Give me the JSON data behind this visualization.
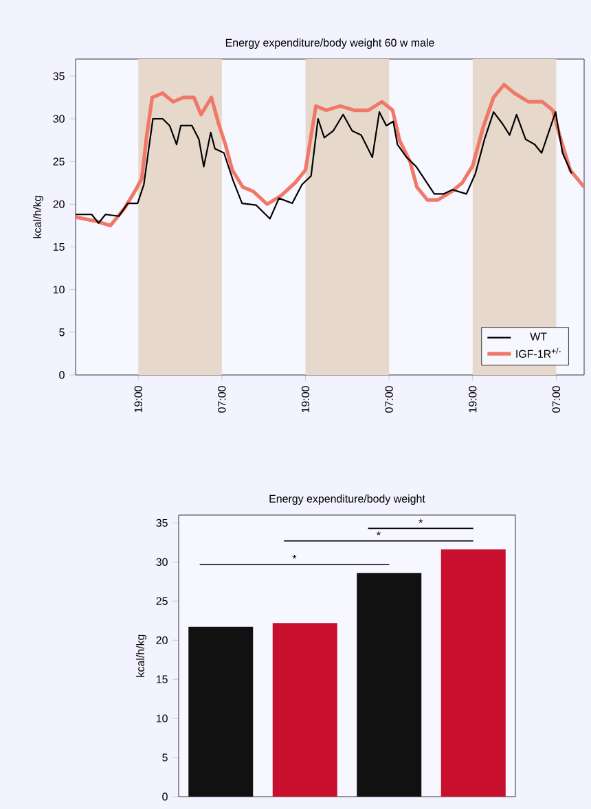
{
  "chart_data": [
    {
      "type": "line",
      "title": "Energy expenditure/body weight 60 w male",
      "ylabel": "kcal/h/kg",
      "xlim": [
        "2000-01-01T10:00",
        "2000-01-04T11:00"
      ],
      "ylim": [
        0,
        37
      ],
      "xticks": [
        {
          "value": "2000-01-01T19:00",
          "label": "19:00"
        },
        {
          "value": "2000-01-02T07:00",
          "label": "07:00"
        },
        {
          "value": "2000-01-02T19:00",
          "label": "19:00"
        },
        {
          "value": "2000-01-03T07:00",
          "label": "07:00"
        },
        {
          "value": "2000-01-03T19:00",
          "label": "19:00"
        },
        {
          "value": "2000-01-04T07:00",
          "label": "07:00"
        }
      ],
      "yticks": [
        0,
        5,
        10,
        15,
        20,
        25,
        30,
        35
      ],
      "legend": "bottom right",
      "bands": [
        {
          "axis": "x",
          "from": "2000-01-01T19:00",
          "to": "2000-01-02T07:00",
          "color": "#e6d9cc"
        },
        {
          "axis": "x",
          "from": "2000-01-02T19:00",
          "to": "2000-01-03T07:00",
          "color": "#e6d9cc"
        },
        {
          "axis": "x",
          "from": "2000-01-03T19:00",
          "to": "2000-01-04T07:00",
          "color": "#e6d9cc"
        }
      ],
      "series": [
        {
          "name": "WT",
          "color": "#000000",
          "x": [
            "2000-01-01T10:00",
            "2000-01-01T12:18",
            "2000-01-01T13:18",
            "2000-01-01T14:18",
            "2000-01-01T16:12",
            "2000-01-01T17:30",
            "2000-01-01T18:54",
            "2000-01-01T19:48",
            "2000-01-01T20:30",
            "2000-01-01T21:06",
            "2000-01-01T22:30",
            "2000-01-01T23:30",
            "2000-01-02T00:30",
            "2000-01-02T01:06",
            "2000-01-02T02:42",
            "2000-01-02T03:42",
            "2000-01-02T04:24",
            "2000-01-02T05:24",
            "2000-01-02T06:00",
            "2000-01-02T07:18",
            "2000-01-02T08:36",
            "2000-01-02T09:54",
            "2000-01-02T11:54",
            "2000-01-02T13:54",
            "2000-01-02T15:12",
            "2000-01-02T17:06",
            "2000-01-02T18:30",
            "2000-01-02T19:48",
            "2000-01-02T20:48",
            "2000-01-02T21:42",
            "2000-01-02T23:00",
            "2000-01-03T00:24",
            "2000-01-03T01:42",
            "2000-01-03T03:00",
            "2000-01-03T04:36",
            "2000-01-03T05:36",
            "2000-01-03T06:36",
            "2000-01-03T07:36",
            "2000-01-03T08:12",
            "2000-01-03T09:30",
            "2000-01-03T10:54",
            "2000-01-03T12:12",
            "2000-01-03T13:30",
            "2000-01-03T14:48",
            "2000-01-03T16:06",
            "2000-01-03T18:06",
            "2000-01-03T18:42",
            "2000-01-03T19:24",
            "2000-01-03T20:42",
            "2000-01-03T22:00",
            "2000-01-03T23:18",
            "2000-01-04T00:18",
            "2000-01-04T01:18",
            "2000-01-04T02:36",
            "2000-01-04T03:54",
            "2000-01-04T04:54",
            "2000-01-04T05:54",
            "2000-01-04T06:54",
            "2000-01-04T07:54",
            "2000-01-04T09:12"
          ],
          "values": [
            18.8,
            18.8,
            17.8,
            18.8,
            18.6,
            20.1,
            20.1,
            22.3,
            26.5,
            30,
            30,
            29.2,
            27,
            29.2,
            29.2,
            27.6,
            24.4,
            28.4,
            26.5,
            26,
            22.8,
            20.1,
            19.9,
            18.3,
            20.7,
            20.1,
            22.3,
            23.3,
            30,
            27.8,
            28.6,
            30.5,
            28.6,
            28.1,
            25.5,
            30.8,
            29.2,
            29.7,
            27,
            25.5,
            24.4,
            22.8,
            21.2,
            21.2,
            21.7,
            21.2,
            22.3,
            23.6,
            27.6,
            30.8,
            29.4,
            28.1,
            30.5,
            27.6,
            27,
            26,
            28.4,
            30.8,
            26,
            23.6
          ]
        },
        {
          "name": "IGF-1R$^{+/-}$",
          "color": "#f07868",
          "x": [
            "2000-01-01T10:00",
            "2000-01-01T13:00",
            "2000-01-01T15:00",
            "2000-01-01T17:00",
            "2000-01-01T18:30",
            "2000-01-01T19:30",
            "2000-01-01T20:12",
            "2000-01-01T21:00",
            "2000-01-01T22:30",
            "2000-01-02T00:00",
            "2000-01-02T01:30",
            "2000-01-02T03:00",
            "2000-01-02T04:00",
            "2000-01-02T05:30",
            "2000-01-02T06:30",
            "2000-01-02T07:30",
            "2000-01-02T08:30",
            "2000-01-02T10:00",
            "2000-01-02T11:30",
            "2000-01-02T13:30",
            "2000-01-02T15:30",
            "2000-01-02T17:30",
            "2000-01-02T19:00",
            "2000-01-02T20:30",
            "2000-01-02T22:00",
            "2000-01-03T00:00",
            "2000-01-03T02:00",
            "2000-01-03T04:00",
            "2000-01-03T06:00",
            "2000-01-03T07:30",
            "2000-01-03T08:30",
            "2000-01-03T10:00",
            "2000-01-03T11:00",
            "2000-01-03T12:30",
            "2000-01-03T14:00",
            "2000-01-03T16:00",
            "2000-01-03T17:30",
            "2000-01-03T19:00",
            "2000-01-03T20:30",
            "2000-01-03T22:00",
            "2000-01-03T23:30",
            "2000-01-04T01:00",
            "2000-01-04T03:00",
            "2000-01-04T05:00",
            "2000-01-04T06:30",
            "2000-01-04T07:30",
            "2000-01-04T09:00",
            "2000-01-04T11:00"
          ],
          "values": [
            18.5,
            18,
            17.5,
            19.5,
            21.5,
            23,
            28,
            32.5,
            33,
            32,
            32.5,
            32.5,
            30.5,
            32.5,
            29.5,
            27,
            24,
            22,
            21.5,
            20,
            21,
            22.5,
            24,
            31.5,
            31,
            31.5,
            31,
            31,
            32,
            31,
            27.5,
            25,
            22,
            20.5,
            20.5,
            21.5,
            22.5,
            24.5,
            29,
            32.5,
            34,
            33,
            32,
            32,
            31,
            28,
            24,
            22
          ]
        }
      ]
    },
    {
      "type": "bar",
      "title": "Energy expenditure/body weight",
      "ylabel": "kcal/h/kg",
      "categories": [
        null,
        null,
        null,
        null
      ],
      "values": [
        21.7,
        22.2,
        28.6,
        31.6
      ],
      "colors": [
        "#111111",
        "#c8102e",
        "#111111",
        "#c8102e"
      ],
      "ylim": [
        0,
        36
      ],
      "yticks": [
        0,
        5,
        10,
        15,
        20,
        25,
        30,
        35
      ],
      "tick_labels": "y",
      "annotations": [
        "*",
        "*",
        "*"
      ]
    }
  ]
}
